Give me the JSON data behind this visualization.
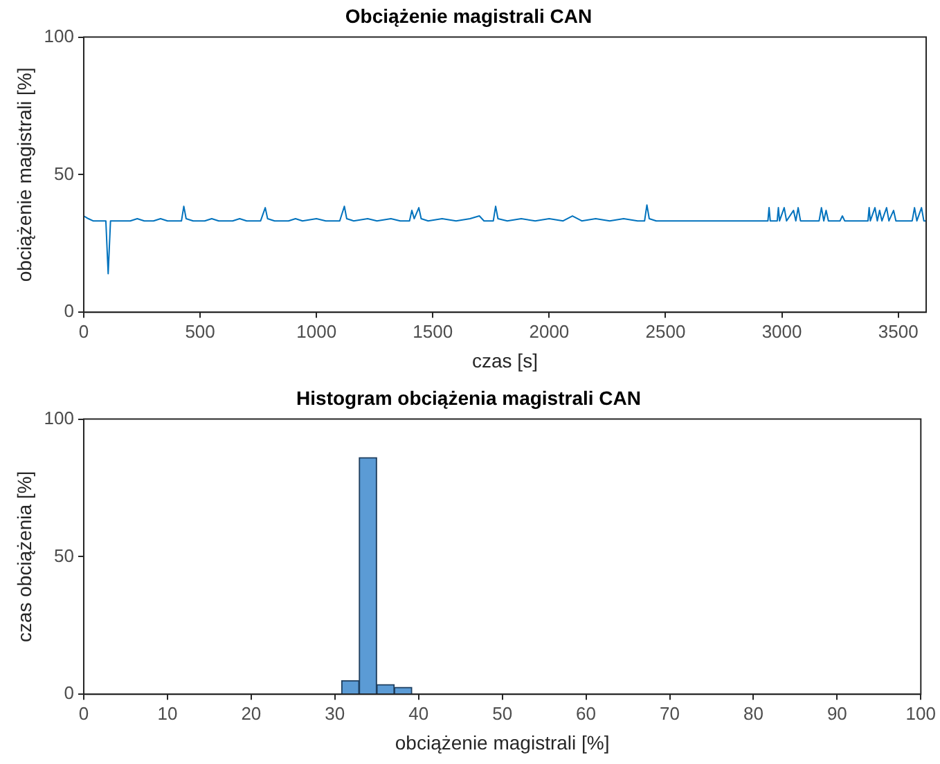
{
  "chart_data": [
    {
      "type": "line",
      "title": "Obciążenie magistrali CAN",
      "xlabel": "czas [s]",
      "ylabel": "obciążenie magistrali [%]",
      "color": "#0072bd",
      "grid": false,
      "x": [
        0,
        20,
        40,
        95,
        105,
        115,
        200,
        230,
        260,
        300,
        330,
        360,
        420,
        430,
        440,
        470,
        520,
        550,
        580,
        640,
        670,
        700,
        760,
        780,
        790,
        820,
        880,
        910,
        940,
        1000,
        1040,
        1100,
        1120,
        1130,
        1160,
        1220,
        1260,
        1320,
        1360,
        1400,
        1410,
        1420,
        1440,
        1450,
        1480,
        1540,
        1600,
        1660,
        1700,
        1720,
        1760,
        1770,
        1780,
        1820,
        1880,
        1940,
        2000,
        2060,
        2100,
        2140,
        2200,
        2260,
        2320,
        2380,
        2410,
        2420,
        2430,
        2460,
        2900,
        2940,
        2945,
        2950,
        2980,
        2985,
        2990,
        3010,
        3020,
        3050,
        3060,
        3070,
        3080,
        3160,
        3170,
        3180,
        3190,
        3200,
        3250,
        3260,
        3270,
        3370,
        3375,
        3380,
        3400,
        3410,
        3420,
        3430,
        3450,
        3460,
        3480,
        3490,
        3560,
        3570,
        3580,
        3600,
        3610,
        3620
      ],
      "values": [
        35,
        34,
        33.2,
        33.2,
        14,
        33.2,
        33.2,
        34,
        33.2,
        33.2,
        34,
        33.2,
        33.2,
        38.5,
        34,
        33.2,
        33.2,
        34,
        33.2,
        33.2,
        34,
        33.2,
        33.2,
        38,
        34,
        33.2,
        33.2,
        34,
        33.2,
        34,
        33.2,
        33.2,
        38.5,
        34,
        33.2,
        34,
        33.2,
        34,
        33.2,
        33.2,
        37,
        34,
        38,
        34,
        33.2,
        34,
        33.2,
        34,
        35,
        33.2,
        33.2,
        38.5,
        34,
        33.2,
        34,
        33.2,
        34,
        33.2,
        35,
        33.2,
        34,
        33.2,
        34,
        33.2,
        33.2,
        39,
        34,
        33.2,
        33.2,
        33.2,
        38,
        33.2,
        33.2,
        38,
        33.2,
        38,
        33.2,
        37,
        33.2,
        38,
        33.2,
        33.2,
        38,
        33.2,
        37,
        33.2,
        33.2,
        35,
        33.2,
        33.2,
        38,
        33.2,
        38,
        33.2,
        37,
        33.2,
        38,
        33.2,
        37,
        33.2,
        33.2,
        38,
        33.2,
        38,
        33.2,
        33.2
      ],
      "xlim": [
        0,
        3620
      ],
      "xticks": [
        0,
        500,
        1000,
        1500,
        2000,
        2500,
        3000,
        3500
      ],
      "ylim": [
        0,
        100
      ],
      "yticks": [
        0,
        50,
        100
      ]
    },
    {
      "type": "histogram",
      "title": "Histogram obciążenia magistrali CAN",
      "xlabel": "obciążenie magistrali [%]",
      "ylabel": "czas obciążenia [%]",
      "color": "#5b9bd5",
      "grid": false,
      "bins": [
        30.8,
        32.9,
        35.0,
        37.1,
        39.2
      ],
      "values": [
        5,
        86,
        3.5,
        2.5
      ],
      "xlim": [
        0,
        100
      ],
      "xticks": [
        0,
        10,
        20,
        30,
        40,
        50,
        60,
        70,
        80,
        90,
        100
      ],
      "ylim": [
        0,
        100
      ],
      "yticks": [
        0,
        50,
        100
      ]
    }
  ]
}
